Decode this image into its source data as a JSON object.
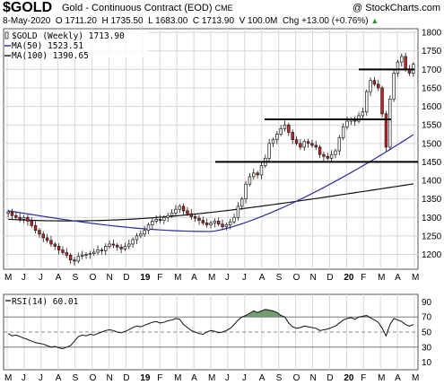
{
  "header": {
    "ticker": "$GOLD",
    "subtitle": "Gold - Continuous Contract (EOD)",
    "exchange": "CME",
    "provider": "@ StockCharts.com",
    "date": "8-May-2020",
    "open": "O 1711.20",
    "high": "H 1735.50",
    "low": "L 1683.00",
    "close": "C 1713.90",
    "volume": "V 100.0M",
    "change": "Chg +13.00 (+0.76%)",
    "change_arrow": "▲"
  },
  "colors": {
    "up_candle": "#ffffff",
    "down_candle": "#cc2222",
    "candle_stroke": "#1a1a1a",
    "ma50": "#2b2b9e",
    "ma100": "#111111",
    "rsi_line": "#111111",
    "rsi_fill": "#5b8c5b",
    "grid": "#d8d8d8",
    "support_line": "#000000"
  },
  "chart_data": [
    {
      "type": "candlestick",
      "title": "$GOLD (Weekly) 1713.90",
      "ylim": [
        1160,
        1810
      ],
      "yticks": [
        1200,
        1250,
        1300,
        1350,
        1400,
        1450,
        1500,
        1550,
        1600,
        1650,
        1700,
        1750,
        1800
      ],
      "xticks": [
        "M",
        "J",
        "J",
        "A",
        "S",
        "O",
        "N",
        "D",
        "19",
        "F",
        "M",
        "A",
        "M",
        "J",
        "J",
        "A",
        "S",
        "O",
        "N",
        "D",
        "20",
        "F",
        "M",
        "A",
        "M"
      ],
      "xtick_bold": [
        "19",
        "20"
      ],
      "legend": [
        {
          "name": "$GOLD (Weekly) 1713.90",
          "marker": "candle"
        },
        {
          "name": "MA(50) 1523.51",
          "color": "#2b2b9e"
        },
        {
          "name": "MA(100) 1390.65",
          "color": "#111111"
        }
      ],
      "weekly_close": [
        1315,
        1305,
        1300,
        1295,
        1300,
        1290,
        1278,
        1265,
        1255,
        1245,
        1238,
        1228,
        1222,
        1212,
        1205,
        1198,
        1185,
        1182,
        1195,
        1198,
        1200,
        1202,
        1206,
        1212,
        1210,
        1222,
        1228,
        1225,
        1220,
        1215,
        1222,
        1228,
        1240,
        1250,
        1255,
        1265,
        1280,
        1290,
        1295,
        1292,
        1300,
        1305,
        1312,
        1322,
        1330,
        1318,
        1310,
        1302,
        1298,
        1292,
        1285,
        1280,
        1285,
        1290,
        1282,
        1275,
        1280,
        1288,
        1300,
        1330,
        1350,
        1390,
        1410,
        1420,
        1415,
        1440,
        1460,
        1500,
        1510,
        1525,
        1540,
        1550,
        1530,
        1510,
        1500,
        1490,
        1505,
        1500,
        1495,
        1490,
        1470,
        1465,
        1460,
        1470,
        1480,
        1515,
        1545,
        1560,
        1565,
        1560,
        1575,
        1585,
        1640,
        1670,
        1660,
        1650,
        1580,
        1490,
        1620,
        1690,
        1720,
        1735,
        1700,
        1690,
        1714
      ],
      "ma50_endpoints": {
        "start": 1318,
        "min_week": 52,
        "min": 1262,
        "end": 1523.51
      },
      "ma100_endpoints": {
        "start": 1295,
        "end": 1390.65
      },
      "support_resistance_levels": [
        1450,
        1565,
        1700
      ]
    },
    {
      "type": "line",
      "title": "RSI(14) 60.01",
      "legend": [
        {
          "name": "RSI(14) 60.01"
        }
      ],
      "ylim": [
        0,
        100
      ],
      "yticks": [
        10,
        30,
        50,
        70,
        90
      ],
      "reference_lines": [
        30,
        50,
        70
      ],
      "xticks": [
        "M",
        "J",
        "J",
        "A",
        "S",
        "O",
        "N",
        "D",
        "19",
        "F",
        "M",
        "A",
        "M",
        "J",
        "J",
        "A",
        "S",
        "O",
        "N",
        "D",
        "20",
        "F",
        "M",
        "A",
        "M"
      ],
      "values": [
        48,
        45,
        46,
        44,
        42,
        40,
        38,
        36,
        35,
        34,
        32,
        30,
        31,
        29,
        28,
        30,
        32,
        38,
        44,
        46,
        45,
        47,
        46,
        48,
        50,
        52,
        53,
        52,
        50,
        49,
        51,
        53,
        56,
        58,
        57,
        59,
        61,
        63,
        64,
        62,
        63,
        65,
        66,
        68,
        67,
        60,
        56,
        52,
        50,
        48,
        47,
        50,
        52,
        51,
        49,
        50,
        52,
        55,
        60,
        66,
        70,
        72,
        75,
        78,
        76,
        78,
        80,
        79,
        78,
        76,
        72,
        70,
        62,
        57,
        55,
        56,
        58,
        57,
        56,
        55,
        52,
        53,
        54,
        56,
        58,
        62,
        66,
        68,
        69,
        67,
        70,
        71,
        72,
        69,
        66,
        63,
        55,
        45,
        60,
        68,
        66,
        64,
        60,
        58,
        60
      ]
    }
  ]
}
